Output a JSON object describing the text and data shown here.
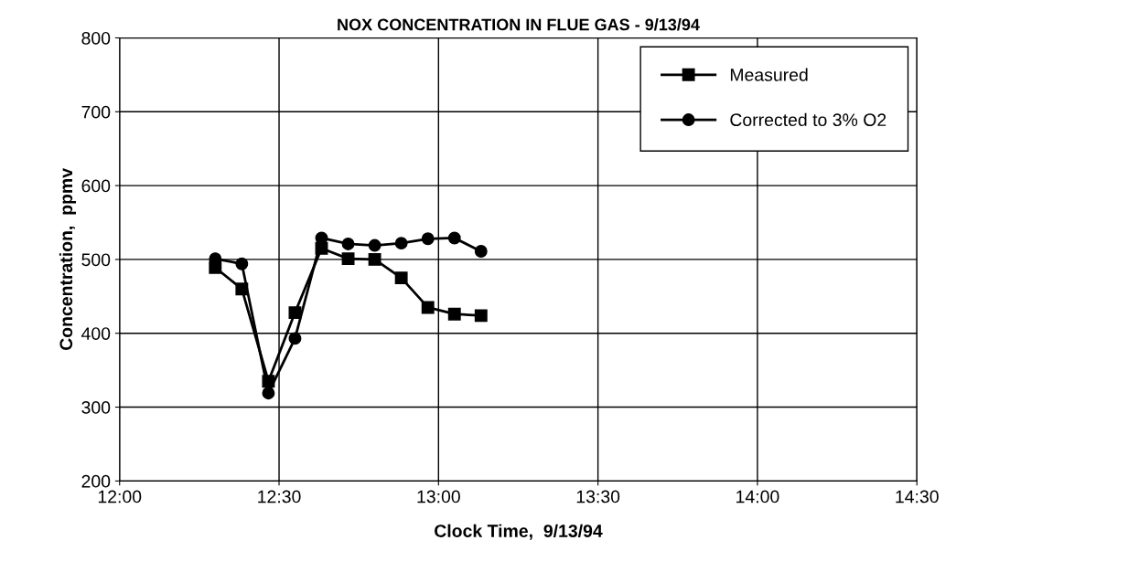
{
  "chart_data": {
    "type": "line",
    "title": "NOX CONCENTRATION IN FLUE GAS - 9/13/94",
    "xlabel": "Clock Time,  9/13/94",
    "ylabel": "Concentration,  ppmv",
    "x": [
      12.3,
      12.3833,
      12.4667,
      12.55,
      12.6333,
      12.7167,
      12.8,
      12.8833,
      12.9667,
      13.05,
      13.1333
    ],
    "series": [
      {
        "name": "Measured",
        "color": "#000000",
        "marker": "square",
        "values": [
          489,
          460,
          335,
          428,
          515,
          501,
          500,
          475,
          435,
          426,
          424
        ]
      },
      {
        "name": "Corrected to 3% O2",
        "color": "#000000",
        "marker": "circle",
        "values": [
          501,
          494,
          319,
          393,
          529,
          521,
          519,
          522,
          528,
          529,
          511
        ]
      }
    ],
    "xlim": [
      12,
      14.5
    ],
    "xticks": [
      {
        "value": 12,
        "label": "12:00"
      },
      {
        "value": 12.5,
        "label": "12:30"
      },
      {
        "value": 13,
        "label": "13:00"
      },
      {
        "value": 13.5,
        "label": "13:30"
      },
      {
        "value": 14,
        "label": "14:00"
      },
      {
        "value": 14.5,
        "label": "14:30"
      }
    ],
    "ylim": [
      200,
      800
    ],
    "yticks": [
      200,
      300,
      400,
      500,
      600,
      700,
      800
    ],
    "grid": true,
    "legend": "top right",
    "line_style": "solid"
  }
}
